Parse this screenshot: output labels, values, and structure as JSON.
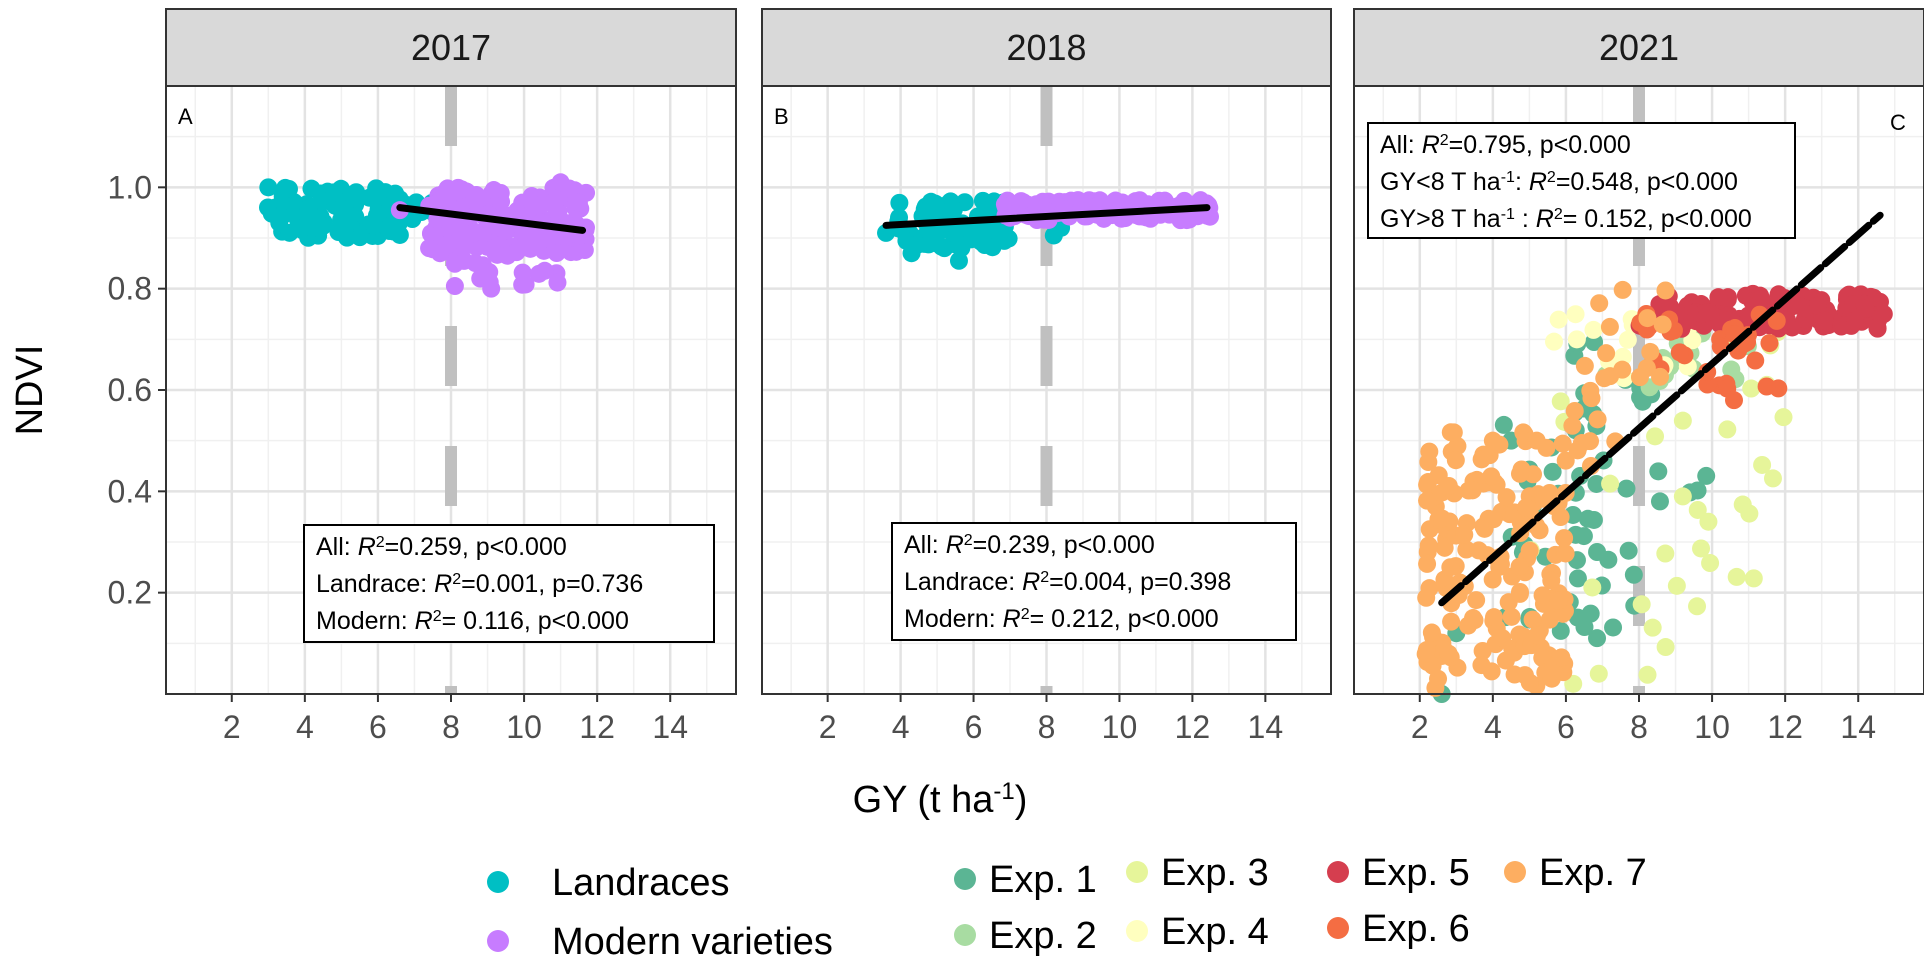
{
  "chart_data": {
    "type": "scatter",
    "xlabel": "GY (t ha",
    "xlabel_sup": "-1",
    "xlabel_end": ")",
    "ylabel": "NDVI",
    "xlim": [
      0.2,
      15.8
    ],
    "ylim": [
      0.0,
      1.2
    ],
    "x_ticks": [
      2,
      4,
      6,
      8,
      10,
      12,
      14
    ],
    "x_tick_labels": [
      "2",
      "4",
      "6",
      "8",
      "10",
      "12",
      "14"
    ],
    "y_ticks": [
      0.2,
      0.4,
      0.6,
      0.8,
      1.0
    ],
    "y_tick_labels": [
      "0.2",
      "0.4",
      "0.6",
      "0.8",
      "1.0"
    ],
    "threshold_x": 8,
    "panels": [
      {
        "title": "2017",
        "letter": "A",
        "legend_group": "variety",
        "fit_line": [
          [
            6.6,
            0.96
          ],
          [
            11.6,
            0.915
          ]
        ],
        "annotation": [
          {
            "prefix": "All: ",
            "r": "R",
            "sup": "2",
            "rest": "=0.259, p<0.000"
          },
          {
            "prefix": "Landrace: ",
            "r": "R",
            "sup": "2",
            "rest": "=0.001, p=0.736"
          },
          {
            "prefix": "Modern: ",
            "r": "R",
            "sup": "2",
            "rest": "= 0.116, p<0.000"
          }
        ],
        "series": [
          {
            "name": "Landraces",
            "clusters": [
              [
                2.9,
                6.7,
                0.9,
                1.0,
                90
              ],
              [
                6.3,
                7.6,
                0.91,
                0.975,
                8
              ]
            ],
            "points": [
              [
                3.0,
                1.0
              ],
              [
                4.2,
                0.92
              ],
              [
                5.1,
                0.915
              ],
              [
                5.9,
                0.925
              ],
              [
                4.8,
                0.99
              ],
              [
                6.0,
                0.98
              ]
            ]
          },
          {
            "name": "Modern varieties",
            "clusters": [
              [
                7.4,
                11.7,
                0.87,
                1.0,
                170
              ],
              [
                8.1,
                11.0,
                0.8,
                0.88,
                18
              ]
            ],
            "points": [
              [
                6.6,
                0.955
              ],
              [
                7.4,
                0.88
              ],
              [
                7.7,
                0.87
              ],
              [
                9.1,
                0.8
              ],
              [
                11.0,
                1.01
              ],
              [
                8.8,
                0.82
              ],
              [
                11.5,
                0.97
              ]
            ]
          }
        ]
      },
      {
        "title": "2018",
        "letter": "B",
        "legend_group": "variety",
        "fit_line": [
          [
            3.6,
            0.925
          ],
          [
            12.4,
            0.96
          ]
        ],
        "annotation": [
          {
            "prefix": "All: ",
            "r": "R",
            "sup": "2",
            "rest": "=0.239, p<0.000"
          },
          {
            "prefix": "Landrace: ",
            "r": "R",
            "sup": "2",
            "rest": "=0.004, p=0.398"
          },
          {
            "prefix": "Modern: ",
            "r": "R",
            "sup": "2",
            "rest": "= 0.212, p<0.000"
          }
        ],
        "series": [
          {
            "name": "Landraces",
            "clusters": [
              [
                3.9,
                7.0,
                0.88,
                0.975,
                85
              ]
            ],
            "points": [
              [
                3.6,
                0.91
              ],
              [
                5.6,
                0.855
              ],
              [
                4.3,
                0.87
              ],
              [
                8.0,
                0.97
              ],
              [
                8.4,
                0.92
              ],
              [
                8.2,
                0.905
              ],
              [
                5.2,
                0.88
              ]
            ]
          },
          {
            "name": "Modern varieties",
            "clusters": [
              [
                6.8,
                12.5,
                0.935,
                0.975,
                150
              ]
            ],
            "points": [
              [
                12.4,
                0.965
              ],
              [
                11.6,
                0.95
              ],
              [
                7.0,
                0.94
              ]
            ]
          }
        ]
      },
      {
        "title": "2021",
        "letter": "C",
        "legend_group": "experiment",
        "fit_line": [
          [
            2.6,
            0.18
          ],
          [
            14.6,
            0.945
          ]
        ],
        "annotation": [
          {
            "prefix": "All: ",
            "r": "R",
            "sup": "2",
            "rest": "=0.795, p<0.000"
          },
          {
            "prefix": "GY<8 T ha",
            "unit_sup": "-1",
            "mid": ": ",
            "r": "R",
            "sup": "2",
            "rest": "=0.548, p<0.000"
          },
          {
            "prefix": "GY>8 T ha",
            "unit_sup": "-1",
            "mid": " : ",
            "r": "R",
            "sup": "2",
            "rest": "= 0.152, p<0.000"
          }
        ],
        "series": [
          {
            "name": "Exp. 1",
            "clusters": [
              [
                4.0,
                8.0,
                0.1,
                0.55,
                40
              ],
              [
                6.0,
                8.5,
                0.5,
                0.7,
                14
              ],
              [
                8.5,
                10.0,
                0.3,
                0.45,
                5
              ]
            ],
            "points": [
              [
                2.6,
                0.0
              ],
              [
                4.5,
                0.5
              ],
              [
                3.0,
                0.12
              ],
              [
                4.8,
                0.1
              ]
            ]
          },
          {
            "name": "Exp. 2",
            "clusters": [
              [
                8.0,
                11.0,
                0.6,
                0.72,
                14
              ]
            ],
            "points": [
              [
                7.1,
                0.63
              ],
              [
                9.1,
                0.67
              ]
            ]
          },
          {
            "name": "Exp. 3",
            "clusters": [
              [
                5.0,
                12.0,
                0.0,
                0.72,
                30
              ]
            ],
            "points": [
              [
                6.9,
                0.04
              ],
              [
                6.2,
                0.02
              ],
              [
                9.2,
                0.39
              ],
              [
                9.9,
                0.34
              ],
              [
                11.5,
                0.61
              ]
            ]
          },
          {
            "name": "Exp. 4",
            "clusters": [
              [
                5.5,
                9.5,
                0.62,
                0.76,
                15
              ]
            ],
            "points": [
              [
                7.8,
                0.74
              ],
              [
                6.3,
                0.7
              ]
            ]
          },
          {
            "name": "Exp. 5",
            "clusters": [
              [
                8.0,
                14.8,
                0.72,
                0.79,
                130
              ]
            ],
            "points": [
              [
                14.7,
                0.75
              ],
              [
                14.2,
                0.76
              ]
            ]
          },
          {
            "name": "Exp. 6",
            "clusters": [
              [
                7.9,
                12.0,
                0.6,
                0.79,
                30
              ]
            ],
            "points": [
              [
                10.6,
                0.58
              ],
              [
                8.2,
                0.75
              ]
            ]
          },
          {
            "name": "Exp. 7",
            "clusters": [
              [
                2.1,
                6.0,
                0.0,
                0.52,
                170
              ],
              [
                6.0,
                7.5,
                0.45,
                0.65,
                10
              ],
              [
                6.5,
                9.0,
                0.62,
                0.8,
                15
              ]
            ],
            "points": [
              [
                2.5,
                0.03
              ],
              [
                3.1,
                0.22
              ],
              [
                4.0,
                0.5
              ],
              [
                5.2,
                0.5
              ]
            ]
          }
        ]
      }
    ],
    "legend": {
      "variety": [
        {
          "name": "Landraces",
          "color": "#00BFC4"
        },
        {
          "name": "Modern varieties",
          "color": "#C77CFF"
        }
      ],
      "experiment": [
        {
          "name": "Exp. 1",
          "color": "#5BB594"
        },
        {
          "name": "Exp. 2",
          "color": "#A8DCA2"
        },
        {
          "name": "Exp. 3",
          "color": "#E6F59A"
        },
        {
          "name": "Exp. 4",
          "color": "#FFFFBF"
        },
        {
          "name": "Exp. 5",
          "color": "#D53E4F"
        },
        {
          "name": "Exp. 6",
          "color": "#F46D43"
        },
        {
          "name": "Exp. 7",
          "color": "#FDAE61"
        }
      ]
    }
  }
}
